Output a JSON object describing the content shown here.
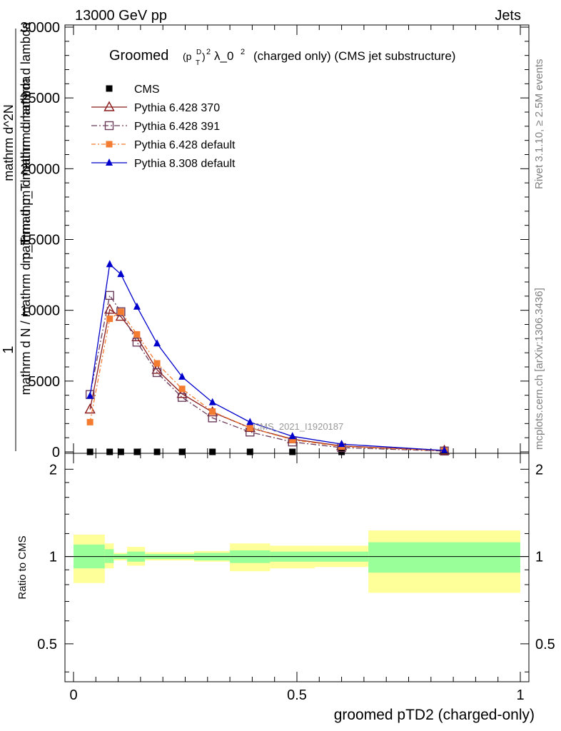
{
  "header": {
    "left": "13000 GeV pp",
    "right": "Jets"
  },
  "side_labels": {
    "rivet": "Rivet 3.1.10, ≥ 2.5M events",
    "mcplots": "mcplots.cern.ch [arXiv:1306.3436]"
  },
  "watermark": "CMS_2021_I1920187",
  "chart_data": [
    {
      "type": "line",
      "title": {
        "main": "Groomed",
        "formula_base": "(p",
        "formula_sup": "D",
        "formula_sub": "T",
        "formula_close": ")",
        "formula_sq": "2",
        "lambda": "λ_0",
        "lambda_sq": "2",
        "tail": "(charged only) (CMS jet substructure)"
      },
      "ylabel": {
        "numerator": "1",
        "denominator": "mathrm d N / mathrm d p_T mathrm d mathrm d lambda",
        "inner_numerator": "mathrm d^2N",
        "inner_denominator": "mathrm d p_T mathrm d mathrm d lambda"
      },
      "xlim": [
        0,
        1
      ],
      "ylim": [
        0,
        30000
      ],
      "yticks": [
        0,
        5000,
        10000,
        15000,
        20000,
        25000,
        30000
      ],
      "ytick_labels": [
        "0",
        "5000",
        "10000",
        "15000",
        "20000",
        "25000",
        "30000"
      ],
      "legend_position": "top-left",
      "series": [
        {
          "name": "CMS",
          "color": "#000000",
          "marker": "square-filled",
          "x": [
            0.037,
            0.081,
            0.106,
            0.142,
            0.187,
            0.243,
            0.311,
            0.395,
            0.49,
            0.6,
            0.83
          ],
          "y": [
            0,
            0,
            0,
            0,
            0,
            0,
            0,
            0,
            0,
            0,
            0
          ]
        },
        {
          "name": "Pythia 6.428 370",
          "color": "#8b1a1a",
          "marker": "triangle-open",
          "x": [
            0.037,
            0.081,
            0.106,
            0.142,
            0.187,
            0.243,
            0.311,
            0.395,
            0.49,
            0.6,
            0.83
          ],
          "y": [
            3000,
            10050,
            9550,
            8100,
            5800,
            4100,
            2800,
            1700,
            900,
            420,
            90
          ]
        },
        {
          "name": "Pythia 6.428 391",
          "color": "#6b3b5a",
          "marker": "square-open",
          "x": [
            0.037,
            0.081,
            0.106,
            0.142,
            0.187,
            0.243,
            0.311,
            0.395,
            0.49,
            0.6,
            0.83
          ],
          "y": [
            4050,
            11050,
            9900,
            7750,
            5600,
            3850,
            2400,
            1400,
            700,
            300,
            60
          ]
        },
        {
          "name": "Pythia 6.428 default",
          "color": "#f47c30",
          "marker": "square-filled",
          "x": [
            0.037,
            0.081,
            0.106,
            0.142,
            0.187,
            0.243,
            0.311,
            0.395,
            0.49,
            0.6,
            0.83
          ],
          "y": [
            2100,
            9400,
            9900,
            8300,
            6250,
            4450,
            2850,
            1700,
            850,
            380,
            80
          ]
        },
        {
          "name": "Pythia 8.308 default",
          "color": "#0000cc",
          "marker": "triangle-filled",
          "x": [
            0.037,
            0.081,
            0.106,
            0.142,
            0.187,
            0.243,
            0.311,
            0.395,
            0.49,
            0.6,
            0.83
          ],
          "y": [
            3950,
            13250,
            12550,
            10250,
            7650,
            5300,
            3500,
            2100,
            1100,
            550,
            100
          ]
        }
      ]
    },
    {
      "type": "area",
      "ylabel": "Ratio to CMS",
      "xlabel": "groomed pTD2 (charged-only)",
      "xlim": [
        0,
        1
      ],
      "ylim": [
        0.37,
        2.27
      ],
      "yticks": [
        0.5,
        1,
        2
      ],
      "ytick_labels": [
        "0.5",
        "1",
        "2"
      ],
      "xticks": [
        0,
        0.5,
        1
      ],
      "xtick_labels": [
        "0",
        "0.5",
        "1"
      ],
      "reference_line": 1,
      "bands": [
        {
          "x0": 0.0,
          "x1": 0.07,
          "inner": [
            0.91,
            1.1
          ],
          "outer": [
            0.81,
            1.19
          ]
        },
        {
          "x0": 0.07,
          "x1": 0.09,
          "inner": [
            0.95,
            1.06
          ],
          "outer": [
            0.91,
            1.11
          ]
        },
        {
          "x0": 0.09,
          "x1": 0.12,
          "inner": [
            0.98,
            1.02
          ],
          "outer": [
            0.97,
            1.03
          ]
        },
        {
          "x0": 0.12,
          "x1": 0.16,
          "inner": [
            0.96,
            1.04
          ],
          "outer": [
            0.93,
            1.08
          ]
        },
        {
          "x0": 0.16,
          "x1": 0.27,
          "inner": [
            0.98,
            1.02
          ],
          "outer": [
            0.97,
            1.035
          ]
        },
        {
          "x0": 0.27,
          "x1": 0.35,
          "inner": [
            0.97,
            1.03
          ],
          "outer": [
            0.96,
            1.045
          ]
        },
        {
          "x0": 0.35,
          "x1": 0.44,
          "inner": [
            0.95,
            1.05
          ],
          "outer": [
            0.89,
            1.11
          ]
        },
        {
          "x0": 0.44,
          "x1": 0.54,
          "inner": [
            0.96,
            1.04
          ],
          "outer": [
            0.91,
            1.09
          ]
        },
        {
          "x0": 0.54,
          "x1": 0.66,
          "inner": [
            0.96,
            1.04
          ],
          "outer": [
            0.92,
            1.09
          ]
        },
        {
          "x0": 0.66,
          "x1": 1.0,
          "inner": [
            0.88,
            1.12
          ],
          "outer": [
            0.75,
            1.23
          ]
        }
      ]
    }
  ]
}
